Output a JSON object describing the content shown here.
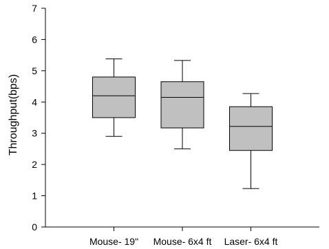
{
  "chart_data": {
    "type": "box",
    "title": "",
    "xlabel": "",
    "ylabel": "Throughput(bps)",
    "ylim": [
      0,
      7
    ],
    "yticks": [
      "0",
      "1",
      "2",
      "3",
      "4",
      "5",
      "6",
      "7"
    ],
    "grid": false,
    "categories": [
      "Mouse- 19\"",
      "Mouse- 6x4 ft",
      "Laser- 6x4 ft"
    ],
    "boxes": [
      {
        "category": "Mouse- 19\"",
        "whisker_low": 2.9,
        "q1": 3.5,
        "median": 4.2,
        "q3": 4.8,
        "whisker_high": 5.38
      },
      {
        "category": "Mouse- 6x4 ft",
        "whisker_low": 2.5,
        "q1": 3.17,
        "median": 4.15,
        "q3": 4.65,
        "whisker_high": 5.33
      },
      {
        "category": "Laser- 6x4 ft",
        "whisker_low": 1.23,
        "q1": 2.45,
        "median": 3.22,
        "q3": 3.85,
        "whisker_high": 4.27
      }
    ],
    "box_color": "#c0c0c0"
  }
}
